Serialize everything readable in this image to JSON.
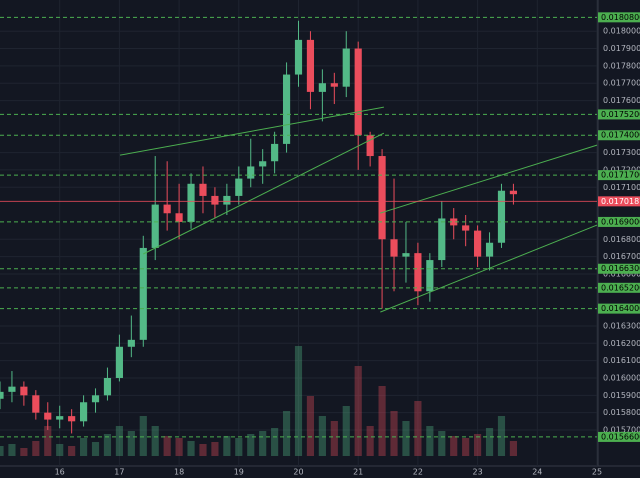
{
  "chart_data": {
    "type": "candlestick",
    "x": [
      15.0,
      15.2,
      15.4,
      15.6,
      15.8,
      16.0,
      16.2,
      16.4,
      16.6,
      16.8,
      17.0,
      17.2,
      17.4,
      17.6,
      17.8,
      18.0,
      18.2,
      18.4,
      18.6,
      18.8,
      19.0,
      19.2,
      19.4,
      19.6,
      19.8,
      20.0,
      20.2,
      20.4,
      20.6,
      20.8,
      21.0,
      21.2,
      21.4,
      21.6,
      21.8,
      22.0,
      22.2,
      22.4,
      22.6,
      22.8,
      23.0,
      23.2,
      23.4,
      23.6
    ],
    "open": [
      0.01588,
      0.01592,
      0.01595,
      0.0159,
      0.0158,
      0.01576,
      0.01578,
      0.01575,
      0.01586,
      0.0159,
      0.016,
      0.01618,
      0.01622,
      0.01675,
      0.017,
      0.01695,
      0.0169,
      0.01712,
      0.01705,
      0.017,
      0.01705,
      0.01715,
      0.01722,
      0.01725,
      0.01735,
      0.01775,
      0.01795,
      0.01765,
      0.0177,
      0.01768,
      0.0179,
      0.0174,
      0.01728,
      0.0168,
      0.0167,
      0.01672,
      0.0165,
      0.01668,
      0.01692,
      0.01688,
      0.01685,
      0.0167,
      0.01678,
      0.01708
    ],
    "high": [
      0.01598,
      0.01604,
      0.01598,
      0.01593,
      0.01586,
      0.01584,
      0.01582,
      0.0159,
      0.01594,
      0.01606,
      0.01625,
      0.01636,
      0.01682,
      0.01728,
      0.01725,
      0.01712,
      0.01718,
      0.01722,
      0.0171,
      0.01712,
      0.01722,
      0.01738,
      0.01732,
      0.01742,
      0.01782,
      0.01806,
      0.018,
      0.01778,
      0.01776,
      0.018,
      0.01794,
      0.01742,
      0.01732,
      0.01715,
      0.0169,
      0.01678,
      0.01672,
      0.01702,
      0.01698,
      0.01694,
      0.01688,
      0.01684,
      0.01712,
      0.01712
    ],
    "low": [
      0.01582,
      0.01586,
      0.01584,
      0.01576,
      0.0157,
      0.01571,
      0.01568,
      0.01572,
      0.0158,
      0.01587,
      0.01598,
      0.01612,
      0.01618,
      0.01668,
      0.01685,
      0.0168,
      0.01686,
      0.01695,
      0.01692,
      0.01694,
      0.017,
      0.0171,
      0.01712,
      0.01718,
      0.0173,
      0.01768,
      0.01755,
      0.01748,
      0.01758,
      0.01762,
      0.0172,
      0.01722,
      0.0164,
      0.0165,
      0.01655,
      0.01642,
      0.01644,
      0.01664,
      0.0168,
      0.01676,
      0.01664,
      0.01662,
      0.01675,
      0.017
    ],
    "close": [
      0.01592,
      0.01595,
      0.0159,
      0.0158,
      0.01576,
      0.01578,
      0.01575,
      0.01586,
      0.0159,
      0.016,
      0.01618,
      0.01622,
      0.01675,
      0.017,
      0.01695,
      0.0169,
      0.01712,
      0.01705,
      0.017,
      0.01705,
      0.01715,
      0.01722,
      0.01725,
      0.01735,
      0.01775,
      0.01795,
      0.01765,
      0.0177,
      0.01768,
      0.0179,
      0.0174,
      0.01728,
      0.0168,
      0.0167,
      0.01672,
      0.0165,
      0.01668,
      0.01692,
      0.01688,
      0.01685,
      0.0167,
      0.01678,
      0.01708,
      0.01706
    ],
    "volume": [
      10,
      12,
      8,
      15,
      30,
      12,
      10,
      18,
      14,
      22,
      30,
      25,
      40,
      30,
      20,
      18,
      15,
      12,
      14,
      20,
      18,
      22,
      25,
      28,
      45,
      110,
      60,
      40,
      35,
      50,
      90,
      30,
      70,
      45,
      35,
      55,
      30,
      25,
      20,
      18,
      22,
      28,
      40,
      15
    ],
    "vlim": [
      0,
      120
    ],
    "up_color": "#53b987",
    "down_color": "#eb4d5c",
    "xlim": [
      15,
      25
    ],
    "xticks": [
      16,
      17,
      18,
      19,
      20,
      21,
      22,
      23,
      24,
      25
    ],
    "ylim": [
      0.01555,
      0.01818
    ],
    "yticks": [
      {
        "value": 0.0157,
        "label": "0.01570000"
      },
      {
        "value": 0.0158,
        "label": "0.01580000"
      },
      {
        "value": 0.0159,
        "label": "0.01590000"
      },
      {
        "value": 0.016,
        "label": "0.01600000"
      },
      {
        "value": 0.0161,
        "label": "0.01610000"
      },
      {
        "value": 0.0162,
        "label": "0.01620000"
      },
      {
        "value": 0.0163,
        "label": "0.01630000"
      },
      {
        "value": 0.0166,
        "label": "0.01660000"
      },
      {
        "value": 0.0167,
        "label": "0.01670000"
      },
      {
        "value": 0.0168,
        "label": "0.01680000"
      },
      {
        "value": 0.0171,
        "label": "0.01710000"
      },
      {
        "value": 0.0172,
        "label": "0.01720000"
      },
      {
        "value": 0.0173,
        "label": "0.01730000"
      },
      {
        "value": 0.0176,
        "label": "0.01760000"
      },
      {
        "value": 0.0177,
        "label": "0.01770000"
      },
      {
        "value": 0.0178,
        "label": "0.01780000"
      },
      {
        "value": 0.0179,
        "label": "0.01790000"
      },
      {
        "value": 0.018,
        "label": "0.01800000"
      }
    ],
    "grid": true,
    "levels": [
      {
        "value": 0.01808,
        "label": "0.01808000"
      },
      {
        "value": 0.01752,
        "label": "0.01752000"
      },
      {
        "value": 0.0174,
        "label": "0.01740000"
      },
      {
        "value": 0.01717,
        "label": "0.01717000"
      },
      {
        "value": 0.0169,
        "label": "0.01690000"
      },
      {
        "value": 0.01663,
        "label": "0.01663000"
      },
      {
        "value": 0.01652,
        "label": "0.01652000"
      },
      {
        "value": 0.0164,
        "label": "0.01640000"
      },
      {
        "value": 0.01566,
        "label": "0.01566000"
      }
    ],
    "level_color": "#4caf50",
    "last_price": 0.01701872,
    "last_color": "#eb4d5c",
    "trendlines": [
      {
        "x": [
          17.01,
          21.43
        ],
        "y": [
          0.017285,
          0.017562
        ]
      },
      {
        "x": [
          17.4,
          21.43
        ],
        "y": [
          0.016715,
          0.017412
        ]
      },
      {
        "x": [
          21.37,
          25.0
        ],
        "y": [
          0.016951,
          0.017343
        ]
      },
      {
        "x": [
          21.37,
          25.0
        ],
        "y": [
          0.01638,
          0.016882
        ]
      }
    ],
    "trend_color": "#4caf50"
  }
}
